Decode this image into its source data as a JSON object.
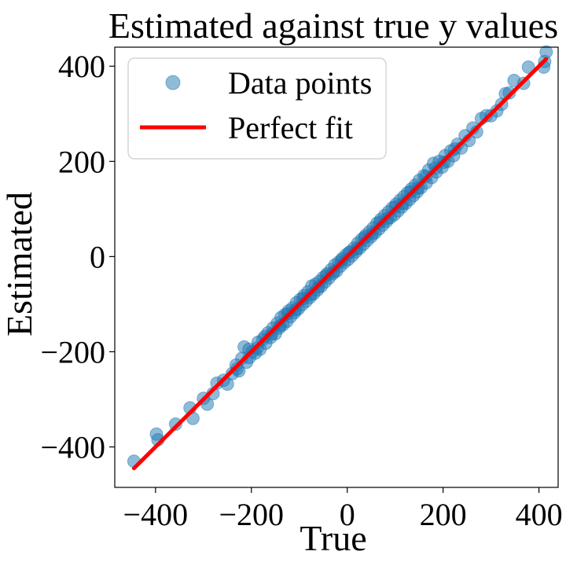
{
  "chart_data": {
    "type": "scatter",
    "title": "Estimated against true y values",
    "xlabel": "True",
    "ylabel": "Estimated",
    "xlim": [
      -485,
      440
    ],
    "ylim": [
      -485,
      440
    ],
    "xticks": [
      -400,
      -200,
      0,
      200,
      400
    ],
    "yticks": [
      -400,
      -200,
      0,
      200,
      400
    ],
    "xtick_labels": [
      "−400",
      "−200",
      "0",
      "200",
      "400"
    ],
    "ytick_labels": [
      "−400",
      "−200",
      "0",
      "200",
      "400"
    ],
    "grid": false,
    "legend_position": "top-left",
    "series": [
      {
        "name": "Data points",
        "kind": "scatter",
        "color": "#1f77b4",
        "opacity": 0.5,
        "points": [
          [
            -445,
            -430
          ],
          [
            -398,
            -373
          ],
          [
            -395,
            -385
          ],
          [
            -358,
            -352
          ],
          [
            -328,
            -318
          ],
          [
            -322,
            -340
          ],
          [
            -300,
            -298
          ],
          [
            -292,
            -310
          ],
          [
            -280,
            -288
          ],
          [
            -272,
            -266
          ],
          [
            -258,
            -260
          ],
          [
            -250,
            -268
          ],
          [
            -240,
            -246
          ],
          [
            -232,
            -228
          ],
          [
            -226,
            -240
          ],
          [
            -220,
            -214
          ],
          [
            -215,
            -190
          ],
          [
            -210,
            -222
          ],
          [
            -204,
            -212
          ],
          [
            -198,
            -200
          ],
          [
            -192,
            -203
          ],
          [
            -186,
            -180
          ],
          [
            -182,
            -195
          ],
          [
            -176,
            -174
          ],
          [
            -170,
            -182
          ],
          [
            -165,
            -160
          ],
          [
            -160,
            -170
          ],
          [
            -155,
            -150
          ],
          [
            -150,
            -162
          ],
          [
            -146,
            -140
          ],
          [
            -142,
            -150
          ],
          [
            -138,
            -128
          ],
          [
            -134,
            -143
          ],
          [
            -130,
            -122
          ],
          [
            -126,
            -136
          ],
          [
            -122,
            -114
          ],
          [
            -118,
            -126
          ],
          [
            -114,
            -108
          ],
          [
            -110,
            -118
          ],
          [
            -106,
            -97
          ],
          [
            -102,
            -110
          ],
          [
            -98,
            -90
          ],
          [
            -94,
            -101
          ],
          [
            -90,
            -82
          ],
          [
            -86,
            -94
          ],
          [
            -82,
            -74
          ],
          [
            -78,
            -86
          ],
          [
            -74,
            -62
          ],
          [
            -70,
            -78
          ],
          [
            -66,
            -58
          ],
          [
            -62,
            -70
          ],
          [
            -58,
            -52
          ],
          [
            -54,
            -62
          ],
          [
            -50,
            -44
          ],
          [
            -46,
            -53
          ],
          [
            -42,
            -36
          ],
          [
            -38,
            -45
          ],
          [
            -34,
            -28
          ],
          [
            -30,
            -36
          ],
          [
            -26,
            -18
          ],
          [
            -22,
            -30
          ],
          [
            -18,
            -12
          ],
          [
            -14,
            -20
          ],
          [
            -10,
            -4
          ],
          [
            -6,
            -12
          ],
          [
            -2,
            4
          ],
          [
            2,
            -6
          ],
          [
            6,
            10
          ],
          [
            10,
            2
          ],
          [
            14,
            18
          ],
          [
            18,
            10
          ],
          [
            22,
            28
          ],
          [
            26,
            18
          ],
          [
            30,
            36
          ],
          [
            34,
            26
          ],
          [
            38,
            44
          ],
          [
            42,
            34
          ],
          [
            46,
            52
          ],
          [
            50,
            42
          ],
          [
            54,
            60
          ],
          [
            58,
            50
          ],
          [
            62,
            70
          ],
          [
            66,
            58
          ],
          [
            70,
            78
          ],
          [
            74,
            66
          ],
          [
            78,
            86
          ],
          [
            82,
            74
          ],
          [
            86,
            94
          ],
          [
            90,
            82
          ],
          [
            94,
            102
          ],
          [
            98,
            88
          ],
          [
            102,
            110
          ],
          [
            106,
            96
          ],
          [
            110,
            118
          ],
          [
            114,
            104
          ],
          [
            118,
            126
          ],
          [
            122,
            112
          ],
          [
            126,
            134
          ],
          [
            130,
            120
          ],
          [
            134,
            142
          ],
          [
            138,
            128
          ],
          [
            142,
            150
          ],
          [
            146,
            136
          ],
          [
            150,
            160
          ],
          [
            154,
            145
          ],
          [
            160,
            170
          ],
          [
            165,
            155
          ],
          [
            170,
            182
          ],
          [
            176,
            166
          ],
          [
            180,
            196
          ],
          [
            186,
            178
          ],
          [
            192,
            200
          ],
          [
            198,
            188
          ],
          [
            204,
            212
          ],
          [
            210,
            200
          ],
          [
            216,
            222
          ],
          [
            222,
            212
          ],
          [
            230,
            236
          ],
          [
            238,
            228
          ],
          [
            246,
            254
          ],
          [
            254,
            244
          ],
          [
            262,
            270
          ],
          [
            270,
            262
          ],
          [
            280,
            290
          ],
          [
            290,
            296
          ],
          [
            300,
            296
          ],
          [
            312,
            306
          ],
          [
            322,
            320
          ],
          [
            330,
            342
          ],
          [
            338,
            344
          ],
          [
            348,
            370
          ],
          [
            368,
            364
          ],
          [
            378,
            398
          ],
          [
            410,
            398
          ],
          [
            412,
            410
          ],
          [
            415,
            430
          ],
          [
            -230,
            -236
          ],
          [
            -205,
            -195
          ],
          [
            -188,
            -192
          ],
          [
            -172,
            -168
          ],
          [
            -158,
            -163
          ],
          [
            -140,
            -145
          ],
          [
            -124,
            -120
          ],
          [
            -108,
            -112
          ],
          [
            -92,
            -88
          ],
          [
            -76,
            -80
          ],
          [
            -60,
            -64
          ],
          [
            -44,
            -40
          ],
          [
            -28,
            -32
          ],
          [
            -12,
            -8
          ],
          [
            4,
            8
          ],
          [
            20,
            16
          ],
          [
            36,
            40
          ],
          [
            52,
            48
          ],
          [
            68,
            72
          ],
          [
            84,
            80
          ],
          [
            100,
            104
          ],
          [
            116,
            112
          ],
          [
            132,
            136
          ],
          [
            148,
            144
          ],
          [
            164,
            168
          ],
          [
            184,
            186
          ],
          [
            202,
            198
          ],
          [
            224,
            226
          ]
        ]
      },
      {
        "name": "Perfect fit",
        "kind": "line",
        "color": "#ff0000",
        "x": [
          -445,
          415
        ],
        "y": [
          -445,
          415
        ]
      }
    ]
  }
}
